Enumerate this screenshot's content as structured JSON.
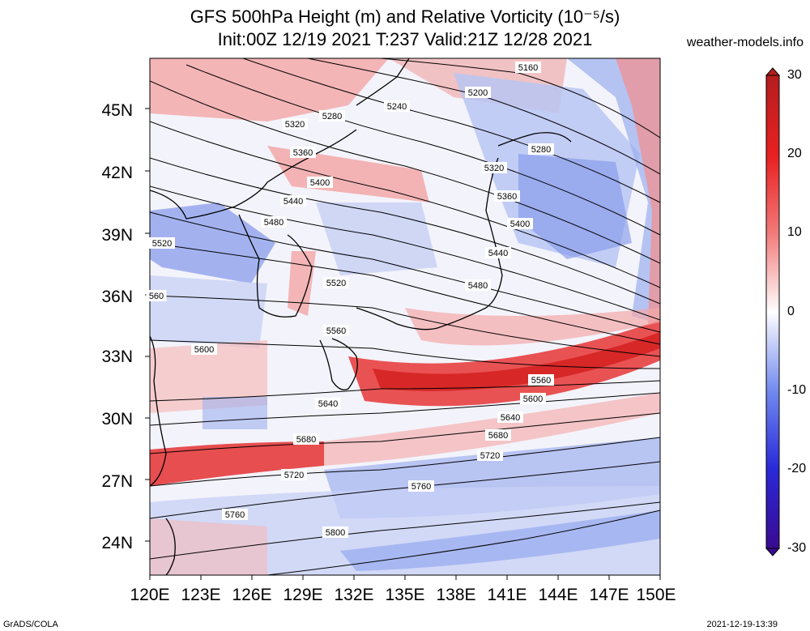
{
  "title": {
    "line1": "GFS 500hPa Height (m) and Relative Vorticity (10⁻⁵/s)",
    "line2": "Init:00Z 12/19 2021 T:237 Valid:21Z 12/28 2021"
  },
  "brand": "weather-models.info",
  "footer": {
    "left": "GrADS/COLA",
    "right": "2021-12-19-13:39"
  },
  "map": {
    "lat_labels": [
      "45N",
      "42N",
      "39N",
      "36N",
      "33N",
      "30N",
      "27N",
      "24N"
    ],
    "lon_labels": [
      "120E",
      "123E",
      "126E",
      "129E",
      "132E",
      "135E",
      "138E",
      "141E",
      "144E",
      "147E",
      "150E"
    ],
    "contour_labels": [
      "5160",
      "5200",
      "5240",
      "5280",
      "5280",
      "5320",
      "5320",
      "5360",
      "5360",
      "5400",
      "5400",
      "5440",
      "5440",
      "5480",
      "5480",
      "5520",
      "5520",
      "560",
      "5560",
      "5560",
      "5600",
      "5600",
      "5640",
      "5640",
      "5680",
      "5680",
      "5720",
      "5720",
      "5760",
      "5760",
      "5800"
    ]
  },
  "colorbar": {
    "ticks": [
      "30",
      "20",
      "10",
      "0",
      "-10",
      "-20",
      "-30"
    ],
    "colors": {
      "top": "#b41e1e",
      "mid": "#ffffff",
      "bottom": "#3a0a90"
    }
  }
}
